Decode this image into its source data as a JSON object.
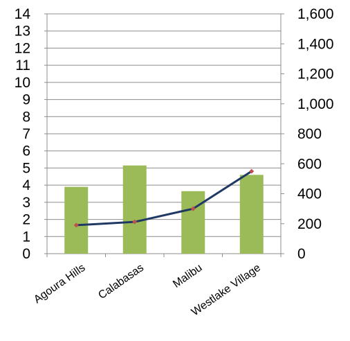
{
  "chart_data": {
    "type": "bar-line-combo",
    "categories": [
      "Agoura Hills",
      "Calabasas",
      "Malibu",
      "Westlake Village"
    ],
    "series": [
      {
        "type": "bar",
        "axis": "left",
        "values": [
          3.9,
          5.15,
          3.65,
          4.6
        ],
        "color": "#9BBB59"
      },
      {
        "type": "line",
        "axis": "right",
        "values": [
          190,
          212,
          300,
          550
        ],
        "color": "#1F3864",
        "marker_color": "#C0504D"
      }
    ],
    "y_left": {
      "min": 0,
      "max": 14,
      "ticks": [
        "0",
        "1",
        "2",
        "3",
        "4",
        "5",
        "6",
        "7",
        "8",
        "9",
        "10",
        "11",
        "12",
        "13",
        "14"
      ]
    },
    "y_right": {
      "min": 0,
      "max": 1600,
      "ticks": [
        "0",
        "200",
        "400",
        "600",
        "800",
        "1,000",
        "1,200",
        "1,400",
        "1,600"
      ]
    },
    "grid": true,
    "legend": "none",
    "title": "",
    "xlabel": "",
    "ylabel": ""
  }
}
